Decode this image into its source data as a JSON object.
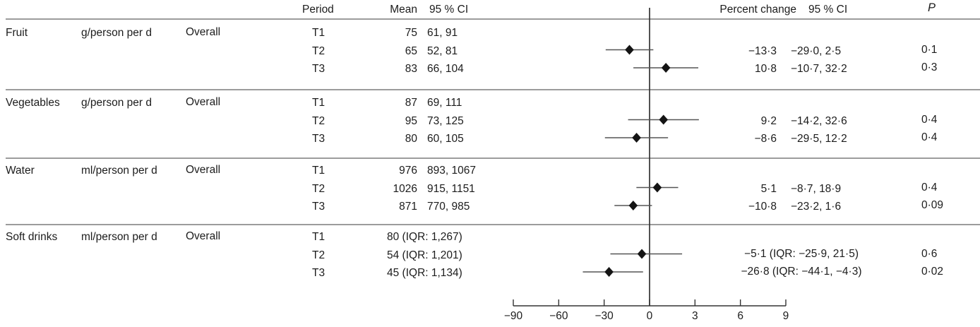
{
  "header": {
    "period": "Period",
    "mean": "Mean",
    "mean_ci": "95 % CI",
    "percent_change": "Percent change",
    "pc_ci": "95 % CI",
    "p": "P"
  },
  "sections": [
    {
      "food": "Fruit",
      "unit": "g/person per d",
      "group": "Overall",
      "rows": [
        {
          "period": "T1",
          "mean": "75",
          "ci": "61, 91"
        },
        {
          "period": "T2",
          "mean": "65",
          "ci": "52, 81",
          "pct": "−13·3",
          "pct_ci": "−29·0, 2·5",
          "p": "0·1"
        },
        {
          "period": "T3",
          "mean": "83",
          "ci": "66, 104",
          "pct": "10·8",
          "pct_ci": "−10·7, 32·2",
          "p": "0·3"
        }
      ]
    },
    {
      "food": "Vegetables",
      "unit": "g/person per d",
      "group": "Overall",
      "rows": [
        {
          "period": "T1",
          "mean": "87",
          "ci": "69, 111"
        },
        {
          "period": "T2",
          "mean": "95",
          "ci": "73, 125",
          "pct": "9·2",
          "pct_ci": "−14·2, 32·6",
          "p": "0·4"
        },
        {
          "period": "T3",
          "mean": "80",
          "ci": "60, 105",
          "pct": "−8·6",
          "pct_ci": "−29·5, 12·2",
          "p": "0·4"
        }
      ]
    },
    {
      "food": "Water",
      "unit": "ml/person per d",
      "group": "Overall",
      "rows": [
        {
          "period": "T1",
          "mean": "976",
          "ci": "893, 1067"
        },
        {
          "period": "T2",
          "mean": "1026",
          "ci": "915, 1151",
          "pct": "5·1",
          "pct_ci": "−8·7, 18·9",
          "p": "0·4"
        },
        {
          "period": "T3",
          "mean": "871",
          "ci": "770, 985",
          "pct": "−10·8",
          "pct_ci": "−23·2, 1·6",
          "p": "0·09"
        }
      ]
    },
    {
      "food": "Soft drinks",
      "unit": "ml/person per d",
      "group": "Overall",
      "rows": [
        {
          "period": "T1",
          "mean_ci": "80 (IQR: 1,267)"
        },
        {
          "period": "T2",
          "mean_ci": "54 (IQR: 1,201)",
          "pct_combined": "−5·1 (IQR: −25·9, 21·5)",
          "p": "0·6"
        },
        {
          "period": "T3",
          "mean_ci": "45 (IQR: 1,134)",
          "pct_combined": "−26·8 (IQR: −44·1, −4·3)",
          "p": "0·02"
        }
      ]
    }
  ],
  "chart_data": {
    "type": "forest",
    "title": "",
    "xlabel": "Percent change",
    "x_axis": {
      "tick_labels": [
        "−90",
        "−60",
        "−30",
        "0",
        "3",
        "6",
        "9"
      ],
      "tick_values": [
        -90,
        -60,
        -30,
        0,
        3,
        6,
        9
      ],
      "zero_reference_line": 0,
      "grid": false
    },
    "marker": "diamond",
    "points": [
      {
        "section": "Fruit",
        "period": "T2",
        "est": -13.3,
        "lo": -29.0,
        "hi": 2.5
      },
      {
        "section": "Fruit",
        "period": "T3",
        "est": 10.8,
        "lo": -10.7,
        "hi": 32.2
      },
      {
        "section": "Vegetables",
        "period": "T2",
        "est": 9.2,
        "lo": -14.2,
        "hi": 32.6
      },
      {
        "section": "Vegetables",
        "period": "T3",
        "est": -8.6,
        "lo": -29.5,
        "hi": 12.2
      },
      {
        "section": "Water",
        "period": "T2",
        "est": 5.1,
        "lo": -8.7,
        "hi": 18.9
      },
      {
        "section": "Water",
        "period": "T3",
        "est": -10.8,
        "lo": -23.2,
        "hi": 1.6
      },
      {
        "section": "Soft drinks",
        "period": "T2",
        "est": -5.1,
        "lo": -25.9,
        "hi": 21.5
      },
      {
        "section": "Soft drinks",
        "period": "T3",
        "est": -26.8,
        "lo": -44.1,
        "hi": -4.3
      }
    ]
  }
}
